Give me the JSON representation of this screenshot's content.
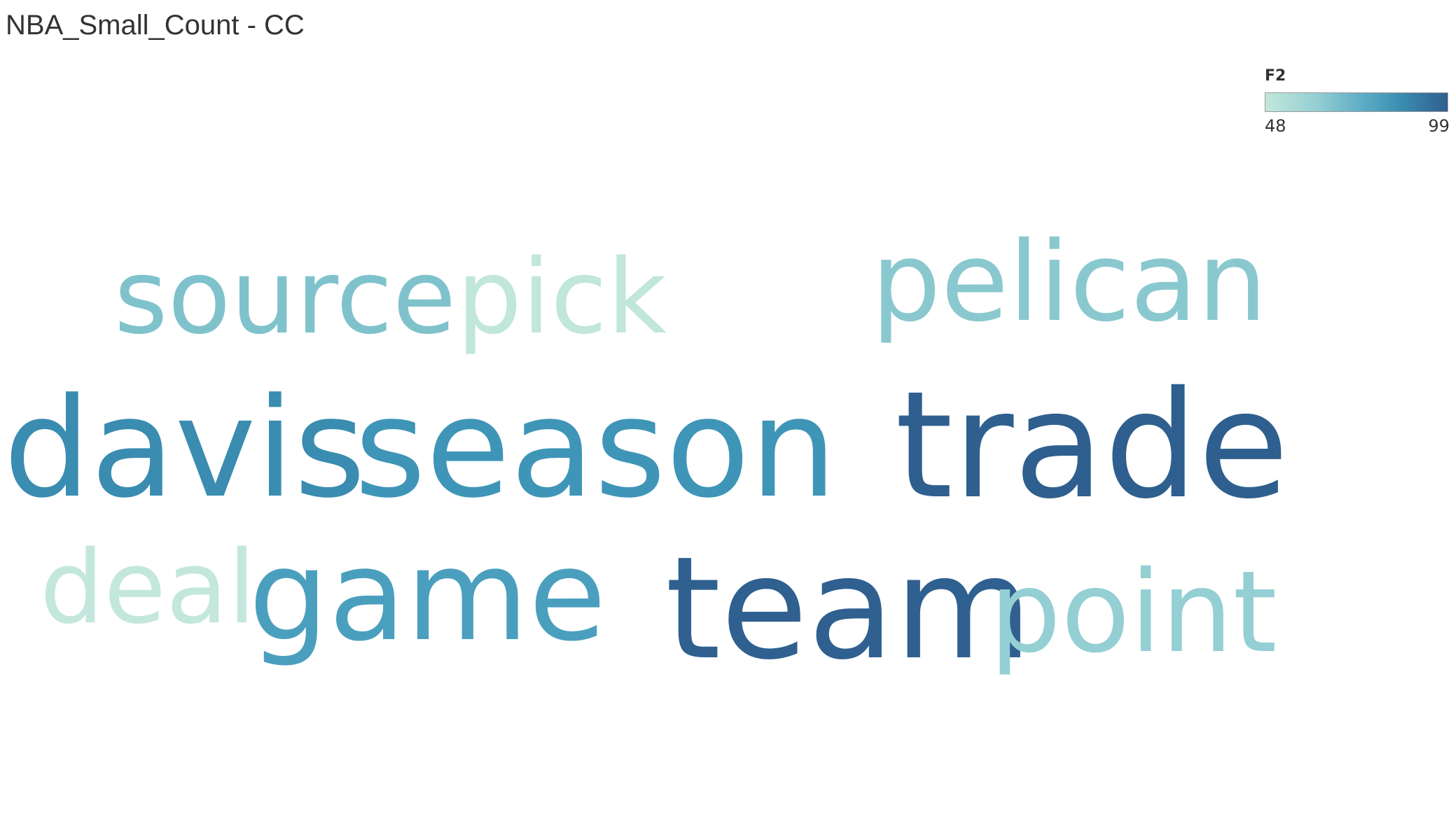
{
  "title": "NBA_Small_Count - CC",
  "legend": {
    "title": "F2",
    "min": "48",
    "max": "99",
    "colors": [
      "#c3e7dc",
      "#94cfd3",
      "#5aaac5",
      "#3b8cb0",
      "#2f5f8e"
    ]
  },
  "chart_data": {
    "type": "word-cloud",
    "color_field": "F2",
    "color_range": [
      48,
      99
    ],
    "words": [
      {
        "text": "source",
        "color": "#7fc2cc"
      },
      {
        "text": "pick",
        "color": "#c1e6dc"
      },
      {
        "text": "pelican",
        "color": "#8ac8cf"
      },
      {
        "text": "davis",
        "color": "#3a8cb0"
      },
      {
        "text": "season",
        "color": "#3f95b7"
      },
      {
        "text": "trade",
        "color": "#2e5f8e"
      },
      {
        "text": "deal",
        "color": "#c3e7dc"
      },
      {
        "text": "game",
        "color": "#4b9fbe"
      },
      {
        "text": "team",
        "color": "#2f6090"
      },
      {
        "text": "point",
        "color": "#94cfd3"
      }
    ]
  }
}
